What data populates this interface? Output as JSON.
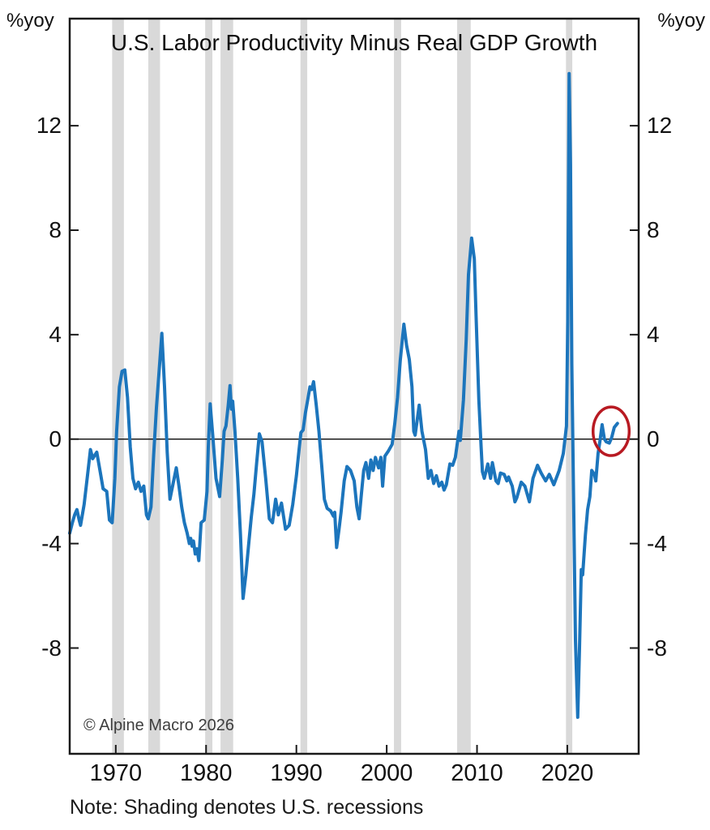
{
  "page": {
    "left_axis_unit": "%yoy",
    "right_axis_unit": "%yoy",
    "copyright": "© Alpine Macro 2026",
    "note": "Note: Shading denotes U.S. recessions"
  },
  "chart_data": {
    "type": "line",
    "title": "U.S. Labor Productivity Minus Real GDP Growth",
    "ylabel_left": "%yoy",
    "ylabel_right": "%yoy",
    "x_ticks": [
      1970,
      1980,
      1990,
      2000,
      2010,
      2020
    ],
    "y_ticks": [
      12,
      8,
      4,
      0,
      -4,
      -8
    ],
    "xlim": [
      1964.9,
      2027.9
    ],
    "ylim": [
      -12.05,
      16.1
    ],
    "grid": false,
    "zero_line": true,
    "legend": "none",
    "recessions_note": "Gray vertical bands mark U.S. recessions",
    "recessions": [
      [
        1969.6,
        1970.9
      ],
      [
        1973.6,
        1974.9
      ],
      [
        1979.9,
        1980.7
      ],
      [
        1981.6,
        1983.0
      ],
      [
        1990.45,
        1991.2
      ],
      [
        2000.8,
        2001.6
      ],
      [
        2007.8,
        2009.3
      ],
      [
        2019.85,
        2020.55
      ]
    ],
    "annotation_ellipse": {
      "year": 2024.85,
      "value": 0.3,
      "rx_years": 2.0,
      "ry_units": 0.93
    },
    "colors": {
      "line": "#1c75bc",
      "recession_band": "#d9d9d9",
      "annotation": "#b81a22",
      "axis": "#1a1a1a",
      "background": "#ffffff"
    },
    "series": [
      {
        "name": "U.S. labor productivity minus real GDP growth (%yoy)",
        "points": [
          [
            1964.9,
            -3.6
          ],
          [
            1965.2,
            -3.2
          ],
          [
            1965.45,
            -2.9
          ],
          [
            1965.7,
            -2.7
          ],
          [
            1965.95,
            -3.1
          ],
          [
            1966.1,
            -3.3
          ],
          [
            1966.5,
            -2.5
          ],
          [
            1966.9,
            -1.3
          ],
          [
            1967.2,
            -0.4
          ],
          [
            1967.45,
            -0.75
          ],
          [
            1967.7,
            -0.6
          ],
          [
            1967.9,
            -0.5
          ],
          [
            1968.3,
            -1.3
          ],
          [
            1968.6,
            -1.9
          ],
          [
            1969.0,
            -2.0
          ],
          [
            1969.3,
            -3.1
          ],
          [
            1969.6,
            -3.2
          ],
          [
            1969.9,
            -1.5
          ],
          [
            1970.1,
            0.3
          ],
          [
            1970.4,
            2.0
          ],
          [
            1970.7,
            2.6
          ],
          [
            1971.0,
            2.65
          ],
          [
            1971.3,
            1.6
          ],
          [
            1971.6,
            -0.3
          ],
          [
            1971.9,
            -1.5
          ],
          [
            1972.2,
            -1.9
          ],
          [
            1972.5,
            -1.65
          ],
          [
            1972.8,
            -2.0
          ],
          [
            1973.1,
            -1.8
          ],
          [
            1973.4,
            -2.9
          ],
          [
            1973.6,
            -3.05
          ],
          [
            1973.9,
            -2.6
          ],
          [
            1974.2,
            -0.6
          ],
          [
            1974.5,
            1.2
          ],
          [
            1974.8,
            2.6
          ],
          [
            1975.1,
            4.05
          ],
          [
            1975.4,
            2.0
          ],
          [
            1975.7,
            -0.5
          ],
          [
            1976.0,
            -2.3
          ],
          [
            1976.35,
            -1.7
          ],
          [
            1976.7,
            -1.1
          ],
          [
            1977.0,
            -1.8
          ],
          [
            1977.3,
            -2.6
          ],
          [
            1977.6,
            -3.2
          ],
          [
            1977.9,
            -3.6
          ],
          [
            1978.15,
            -4.0
          ],
          [
            1978.3,
            -3.8
          ],
          [
            1978.45,
            -4.1
          ],
          [
            1978.6,
            -3.9
          ],
          [
            1978.8,
            -4.4
          ],
          [
            1979.0,
            -4.2
          ],
          [
            1979.2,
            -4.65
          ],
          [
            1979.45,
            -3.2
          ],
          [
            1979.8,
            -3.1
          ],
          [
            1980.1,
            -2.0
          ],
          [
            1980.25,
            -0.3
          ],
          [
            1980.45,
            1.35
          ],
          [
            1980.75,
            0.1
          ],
          [
            1981.1,
            -1.5
          ],
          [
            1981.5,
            -2.2
          ],
          [
            1981.8,
            -0.8
          ],
          [
            1982.0,
            0.3
          ],
          [
            1982.2,
            0.5
          ],
          [
            1982.45,
            1.3
          ],
          [
            1982.65,
            2.05
          ],
          [
            1982.8,
            1.15
          ],
          [
            1982.95,
            1.45
          ],
          [
            1983.2,
            0.3
          ],
          [
            1983.5,
            -1.5
          ],
          [
            1983.8,
            -3.6
          ],
          [
            1984.1,
            -6.1
          ],
          [
            1984.4,
            -5.2
          ],
          [
            1984.7,
            -4.1
          ],
          [
            1985.0,
            -3.0
          ],
          [
            1985.3,
            -2.1
          ],
          [
            1985.6,
            -0.9
          ],
          [
            1985.9,
            0.2
          ],
          [
            1986.2,
            -0.1
          ],
          [
            1986.6,
            -1.5
          ],
          [
            1987.0,
            -3.05
          ],
          [
            1987.35,
            -3.2
          ],
          [
            1987.7,
            -2.3
          ],
          [
            1988.0,
            -2.9
          ],
          [
            1988.35,
            -2.45
          ],
          [
            1988.8,
            -3.45
          ],
          [
            1989.2,
            -3.3
          ],
          [
            1989.6,
            -2.5
          ],
          [
            1990.0,
            -1.4
          ],
          [
            1990.3,
            -0.4
          ],
          [
            1990.5,
            0.25
          ],
          [
            1990.75,
            0.35
          ],
          [
            1991.0,
            1.0
          ],
          [
            1991.3,
            1.6
          ],
          [
            1991.5,
            2.0
          ],
          [
            1991.7,
            1.9
          ],
          [
            1991.9,
            2.2
          ],
          [
            1992.2,
            1.3
          ],
          [
            1992.5,
            0.3
          ],
          [
            1992.8,
            -1.0
          ],
          [
            1993.1,
            -2.3
          ],
          [
            1993.4,
            -2.65
          ],
          [
            1993.8,
            -2.75
          ],
          [
            1994.1,
            -2.95
          ],
          [
            1994.25,
            -2.8
          ],
          [
            1994.45,
            -4.15
          ],
          [
            1994.7,
            -3.5
          ],
          [
            1994.95,
            -2.8
          ],
          [
            1995.3,
            -1.6
          ],
          [
            1995.6,
            -1.05
          ],
          [
            1996.0,
            -1.2
          ],
          [
            1996.4,
            -1.6
          ],
          [
            1996.7,
            -2.6
          ],
          [
            1996.95,
            -3.05
          ],
          [
            1997.2,
            -2.1
          ],
          [
            1997.45,
            -1.2
          ],
          [
            1997.7,
            -0.9
          ],
          [
            1998.0,
            -1.5
          ],
          [
            1998.25,
            -0.8
          ],
          [
            1998.5,
            -1.2
          ],
          [
            1998.75,
            -0.7
          ],
          [
            1999.1,
            -1.1
          ],
          [
            1999.35,
            -0.7
          ],
          [
            1999.55,
            -1.8
          ],
          [
            1999.8,
            -0.65
          ],
          [
            2000.2,
            -0.45
          ],
          [
            2000.6,
            -0.2
          ],
          [
            2000.9,
            0.6
          ],
          [
            2001.2,
            1.6
          ],
          [
            2001.5,
            3.0
          ],
          [
            2001.9,
            4.4
          ],
          [
            2002.2,
            3.6
          ],
          [
            2002.5,
            3.05
          ],
          [
            2002.8,
            2.0
          ],
          [
            2003.0,
            0.3
          ],
          [
            2003.15,
            0.15
          ],
          [
            2003.6,
            1.3
          ],
          [
            2003.9,
            0.3
          ],
          [
            2004.3,
            -0.4
          ],
          [
            2004.6,
            -1.5
          ],
          [
            2004.9,
            -1.2
          ],
          [
            2005.2,
            -1.7
          ],
          [
            2005.5,
            -1.4
          ],
          [
            2005.8,
            -1.8
          ],
          [
            2006.1,
            -1.65
          ],
          [
            2006.35,
            -1.95
          ],
          [
            2006.6,
            -1.75
          ],
          [
            2007.0,
            -0.95
          ],
          [
            2007.3,
            -1.0
          ],
          [
            2007.6,
            -0.7
          ],
          [
            2008.0,
            0.3
          ],
          [
            2008.15,
            -0.05
          ],
          [
            2008.5,
            1.5
          ],
          [
            2008.8,
            3.8
          ],
          [
            2009.05,
            6.3
          ],
          [
            2009.4,
            7.7
          ],
          [
            2009.7,
            6.9
          ],
          [
            2009.9,
            4.7
          ],
          [
            2010.2,
            1.5
          ],
          [
            2010.45,
            -0.3
          ],
          [
            2010.6,
            -1.25
          ],
          [
            2010.8,
            -1.5
          ],
          [
            2011.2,
            -0.95
          ],
          [
            2011.5,
            -1.5
          ],
          [
            2011.7,
            -0.9
          ],
          [
            2012.1,
            -1.6
          ],
          [
            2012.35,
            -1.7
          ],
          [
            2012.6,
            -1.3
          ],
          [
            2013.0,
            -1.35
          ],
          [
            2013.3,
            -1.6
          ],
          [
            2013.5,
            -1.45
          ],
          [
            2013.9,
            -1.8
          ],
          [
            2014.2,
            -2.4
          ],
          [
            2014.4,
            -2.25
          ],
          [
            2014.9,
            -1.65
          ],
          [
            2015.3,
            -1.8
          ],
          [
            2015.8,
            -2.4
          ],
          [
            2016.2,
            -1.5
          ],
          [
            2016.7,
            -1.0
          ],
          [
            2017.1,
            -1.3
          ],
          [
            2017.6,
            -1.6
          ],
          [
            2018.0,
            -1.35
          ],
          [
            2018.5,
            -1.75
          ],
          [
            2019.1,
            -1.2
          ],
          [
            2019.55,
            -0.55
          ],
          [
            2019.9,
            0.5
          ],
          [
            2020.05,
            4.5
          ],
          [
            2020.2,
            14.0
          ],
          [
            2020.35,
            10.5
          ],
          [
            2020.5,
            2.9
          ],
          [
            2020.7,
            -2.5
          ],
          [
            2020.9,
            -7.7
          ],
          [
            2021.15,
            -10.65
          ],
          [
            2021.35,
            -8.0
          ],
          [
            2021.55,
            -5.0
          ],
          [
            2021.7,
            -5.2
          ],
          [
            2022.0,
            -3.65
          ],
          [
            2022.25,
            -2.7
          ],
          [
            2022.5,
            -2.2
          ],
          [
            2022.7,
            -1.2
          ],
          [
            2023.0,
            -1.35
          ],
          [
            2023.15,
            -1.6
          ],
          [
            2023.4,
            -0.55
          ],
          [
            2023.6,
            -0.1
          ],
          [
            2023.85,
            0.55
          ],
          [
            2024.1,
            0.0
          ],
          [
            2024.3,
            -0.1
          ],
          [
            2024.65,
            -0.15
          ],
          [
            2024.9,
            0.05
          ],
          [
            2025.2,
            0.45
          ],
          [
            2025.55,
            0.6
          ]
        ]
      }
    ]
  }
}
